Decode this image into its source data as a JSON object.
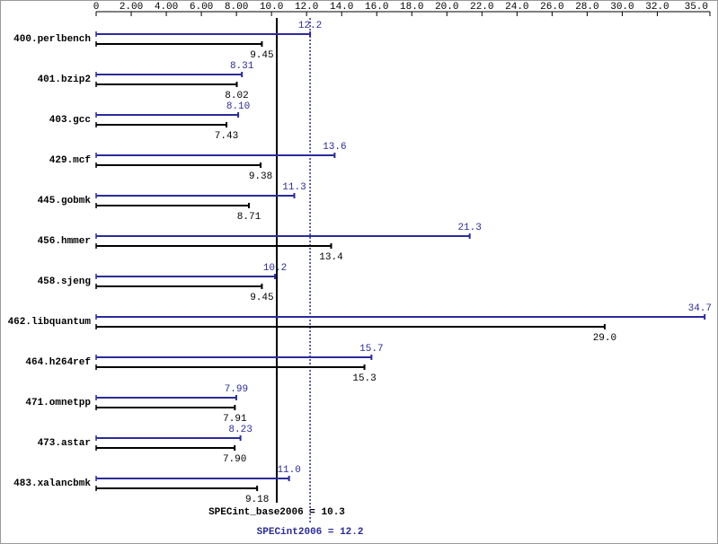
{
  "chart_data": {
    "type": "hbar",
    "categories": [
      "400.perlbench",
      "401.bzip2",
      "403.gcc",
      "429.mcf",
      "445.gobmk",
      "456.hmmer",
      "458.sjeng",
      "462.libquantum",
      "464.h264ref",
      "471.omnetpp",
      "473.astar",
      "483.xalancbmk"
    ],
    "series": [
      {
        "color": "#2b2b9b",
        "values": [
          12.2,
          8.31,
          8.1,
          13.6,
          11.3,
          21.3,
          10.2,
          34.7,
          15.7,
          7.99,
          8.23,
          11.0
        ],
        "value_labels": [
          "12.2",
          "8.31",
          "8.10",
          "13.6",
          "11.3",
          "21.3",
          "10.2",
          "34.7",
          "15.7",
          "7.99",
          "8.23",
          "11.0"
        ]
      },
      {
        "color": "#000000",
        "values": [
          9.45,
          8.02,
          7.43,
          9.38,
          8.71,
          13.4,
          9.45,
          29.0,
          15.3,
          7.91,
          7.9,
          9.18
        ],
        "value_labels": [
          "9.45",
          "8.02",
          "7.43",
          "9.38",
          "8.71",
          "13.4",
          "9.45",
          "29.0",
          "15.3",
          "7.91",
          "7.90",
          "9.18"
        ]
      }
    ],
    "xlim": [
      0,
      35
    ],
    "xticks": [
      0,
      {
        "value": 2,
        "label": "2.00"
      },
      {
        "value": 4,
        "label": "4.00"
      },
      {
        "value": 6,
        "label": "6.00"
      },
      {
        "value": 8,
        "label": "8.00"
      },
      {
        "value": 10,
        "label": "10.0"
      },
      {
        "value": 12,
        "label": "12.0"
      },
      {
        "value": 14,
        "label": "14.0"
      },
      {
        "value": 16,
        "label": "16.0"
      },
      {
        "value": 18,
        "label": "18.0"
      },
      {
        "value": 20,
        "label": "20.0"
      },
      {
        "value": 22,
        "label": "22.0"
      },
      {
        "value": 24,
        "label": "24.0"
      },
      {
        "value": 26,
        "label": "26.0"
      },
      {
        "value": 28,
        "label": "28.0"
      },
      {
        "value": 30,
        "label": "30.0"
      },
      {
        "value": 32,
        "label": "32.0"
      },
      {
        "value": 35,
        "label": "35.0"
      }
    ],
    "reference_lines": [
      {
        "value": 10.3,
        "label": "SPECint_base2006 = 10.3",
        "color": "#000000",
        "style": "solid"
      },
      {
        "value": 12.2,
        "label": "SPECint2006 = 12.2",
        "color": "#2b2b9b",
        "style": "dotted"
      }
    ]
  }
}
